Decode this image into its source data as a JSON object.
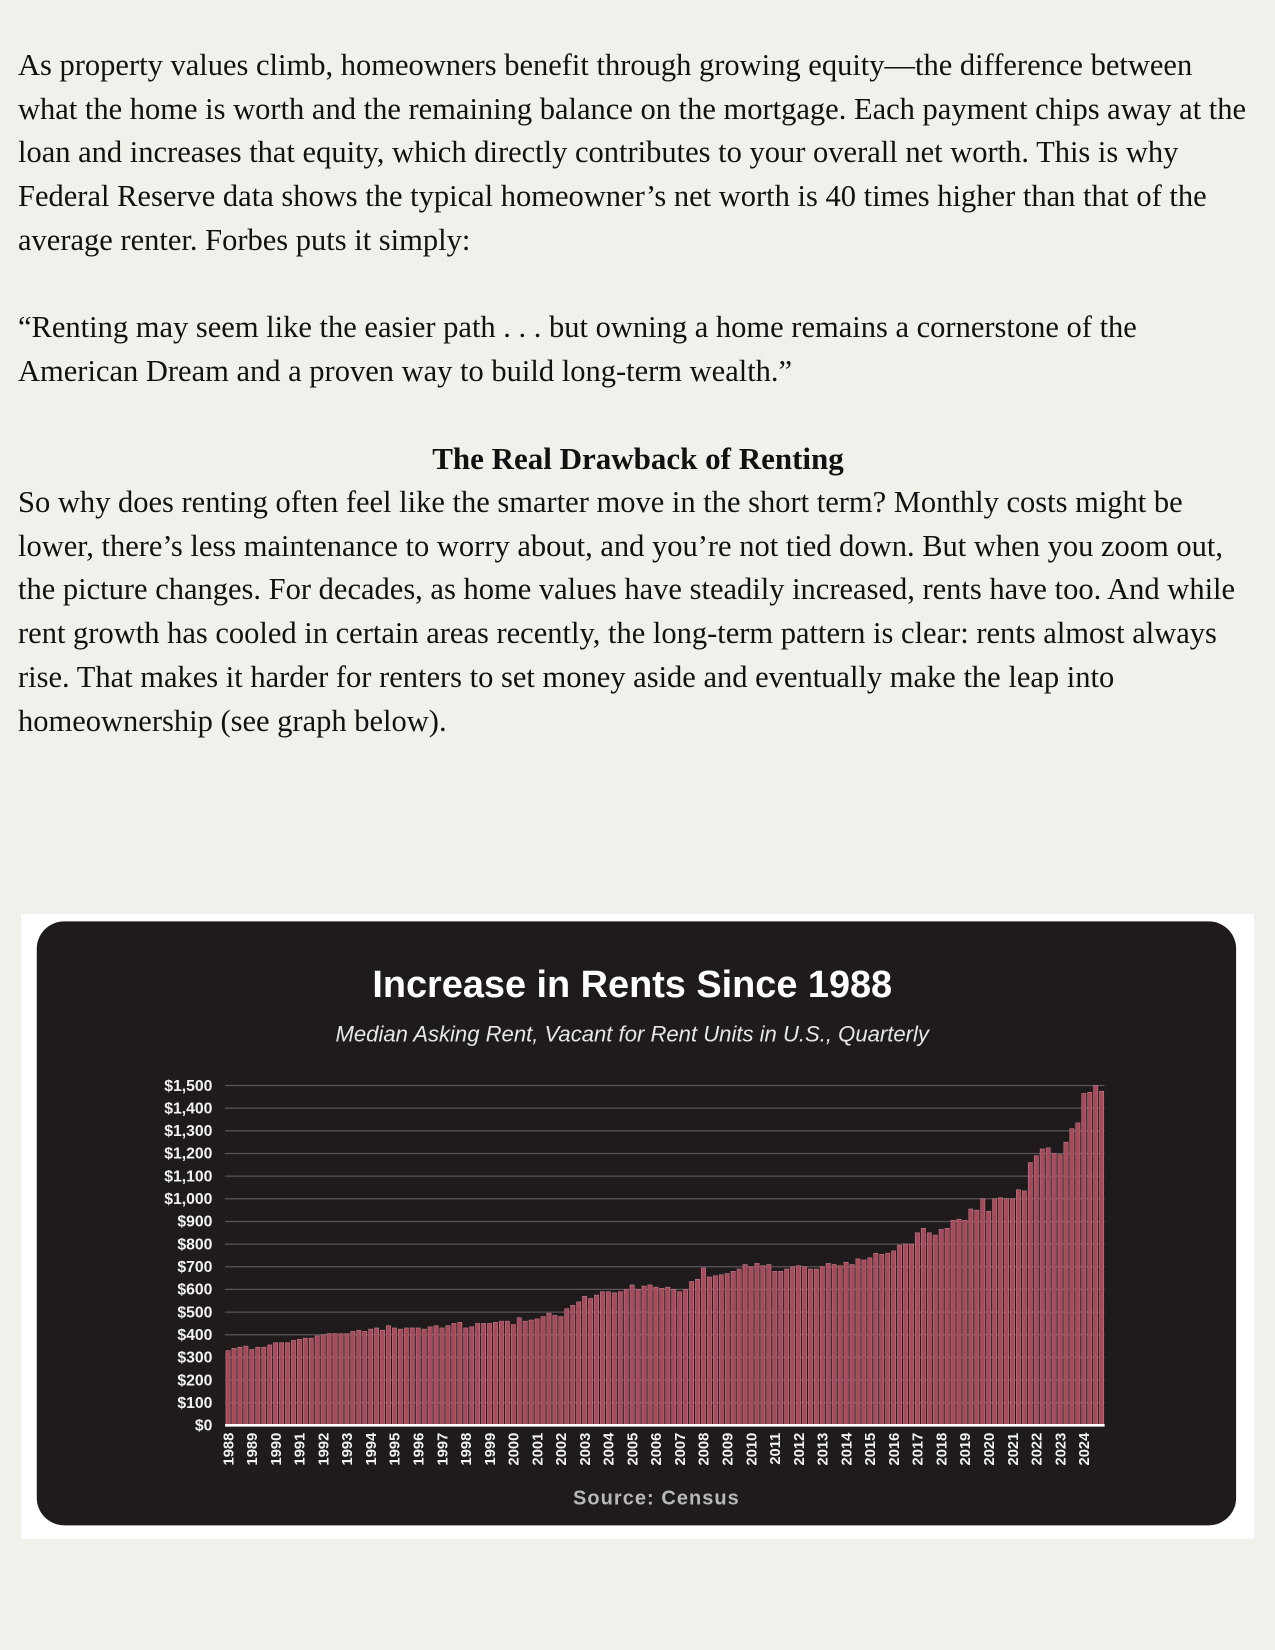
{
  "document": {
    "paragraphs": [
      "As property values climb, homeowners benefit through growing equity—the difference between what the home is worth and the remaining balance on the mortgage. Each payment chips away at the loan and increases that equity, which directly contributes to your overall net worth. This is why Federal Reserve data shows the typical homeowner’s net worth is 40 times higher than that of the average renter. Forbes puts it simply:",
      "“Renting may seem like the easier path . . . but owning a home remains a cornerstone of the American Dream and a proven way to build long-term wealth.”"
    ],
    "heading": "The Real Drawback of Renting",
    "body": "So why does renting often feel like the smarter move in the short term? Monthly costs might be lower, there’s less maintenance to worry about, and you’re not tied down. But when you zoom out, the picture changes. For decades, as home values have steadily increased, rents have too. And while rent growth has cooled in certain areas recently, the long-term pattern is clear: rents almost always rise. That makes it harder for renters to set money aside and eventually make the leap into homeownership (see graph below)."
  },
  "chart_data": {
    "type": "bar",
    "title": "Increase in Rents Since 1988",
    "subtitle": "Median Asking Rent, Vacant for Rent Units in U.S., Quarterly",
    "source": "Source: Census",
    "color": "#a84a5a",
    "grid": true,
    "categories": [
      "1988",
      null,
      null,
      null,
      "1989",
      null,
      null,
      null,
      "1990",
      null,
      null,
      null,
      "1991",
      null,
      null,
      null,
      "1992",
      null,
      null,
      null,
      "1993",
      null,
      null,
      null,
      "1994",
      null,
      null,
      null,
      "1995",
      null,
      null,
      null,
      "1996",
      null,
      null,
      null,
      "1997",
      null,
      null,
      null,
      "1998",
      null,
      null,
      null,
      "1999",
      null,
      null,
      null,
      "2000",
      null,
      null,
      null,
      "2001",
      null,
      null,
      null,
      "2002",
      null,
      null,
      null,
      "2003",
      null,
      null,
      null,
      "2004",
      null,
      null,
      null,
      "2005",
      null,
      null,
      null,
      "2006",
      null,
      null,
      null,
      "2007",
      null,
      null,
      null,
      "2008",
      null,
      null,
      null,
      "2009",
      null,
      null,
      null,
      "2010",
      null,
      null,
      null,
      "2011",
      null,
      null,
      null,
      "2012",
      null,
      null,
      null,
      "2013",
      null,
      null,
      null,
      "2014",
      null,
      null,
      null,
      "2015",
      null,
      null,
      null,
      "2016",
      null,
      null,
      null,
      "2017",
      null,
      null,
      null,
      "2018",
      null,
      null,
      null,
      "2019",
      null,
      null,
      null,
      "2020",
      null,
      null,
      null,
      "2021",
      null,
      null,
      null,
      "2022",
      null,
      null,
      null,
      "2023",
      null,
      null,
      null,
      "2024",
      null,
      null,
      null
    ],
    "values": [
      330,
      340,
      345,
      350,
      335,
      345,
      345,
      355,
      365,
      365,
      365,
      375,
      380,
      385,
      385,
      395,
      400,
      405,
      405,
      405,
      405,
      415,
      420,
      415,
      425,
      430,
      420,
      440,
      430,
      425,
      430,
      430,
      430,
      425,
      435,
      440,
      430,
      440,
      450,
      455,
      430,
      435,
      450,
      450,
      450,
      455,
      460,
      460,
      445,
      475,
      460,
      465,
      470,
      480,
      495,
      485,
      480,
      515,
      530,
      545,
      570,
      560,
      575,
      590,
      590,
      585,
      590,
      600,
      620,
      600,
      615,
      620,
      610,
      605,
      610,
      600,
      590,
      600,
      635,
      645,
      695,
      655,
      660,
      665,
      670,
      680,
      690,
      710,
      700,
      715,
      705,
      710,
      680,
      680,
      690,
      700,
      705,
      700,
      690,
      690,
      700,
      715,
      710,
      705,
      720,
      710,
      735,
      730,
      740,
      760,
      755,
      760,
      770,
      795,
      800,
      800,
      850,
      870,
      850,
      840,
      865,
      870,
      905,
      910,
      905,
      955,
      950,
      1000,
      945,
      1000,
      1005,
      1000,
      1000,
      1040,
      1035,
      1160,
      1190,
      1220,
      1225,
      1200,
      1195,
      1250,
      1310,
      1335,
      1465,
      1470,
      1500,
      1475
    ],
    "ylim": [
      0,
      1500
    ],
    "yticks": [
      {
        "value": 0,
        "label": "$0"
      },
      {
        "value": 100,
        "label": "$100"
      },
      {
        "value": 200,
        "label": "$200"
      },
      {
        "value": 300,
        "label": "$300"
      },
      {
        "value": 400,
        "label": "$400"
      },
      {
        "value": 500,
        "label": "$500"
      },
      {
        "value": 600,
        "label": "$600"
      },
      {
        "value": 700,
        "label": "$700"
      },
      {
        "value": 800,
        "label": "$800"
      },
      {
        "value": 900,
        "label": "$900"
      },
      {
        "value": 1000,
        "label": "$1,000"
      },
      {
        "value": 1100,
        "label": "$1,100"
      },
      {
        "value": 1200,
        "label": "$1,200"
      },
      {
        "value": 1300,
        "label": "$1,300"
      },
      {
        "value": 1400,
        "label": "$1,400"
      },
      {
        "value": 1500,
        "label": "$1,500"
      }
    ]
  }
}
